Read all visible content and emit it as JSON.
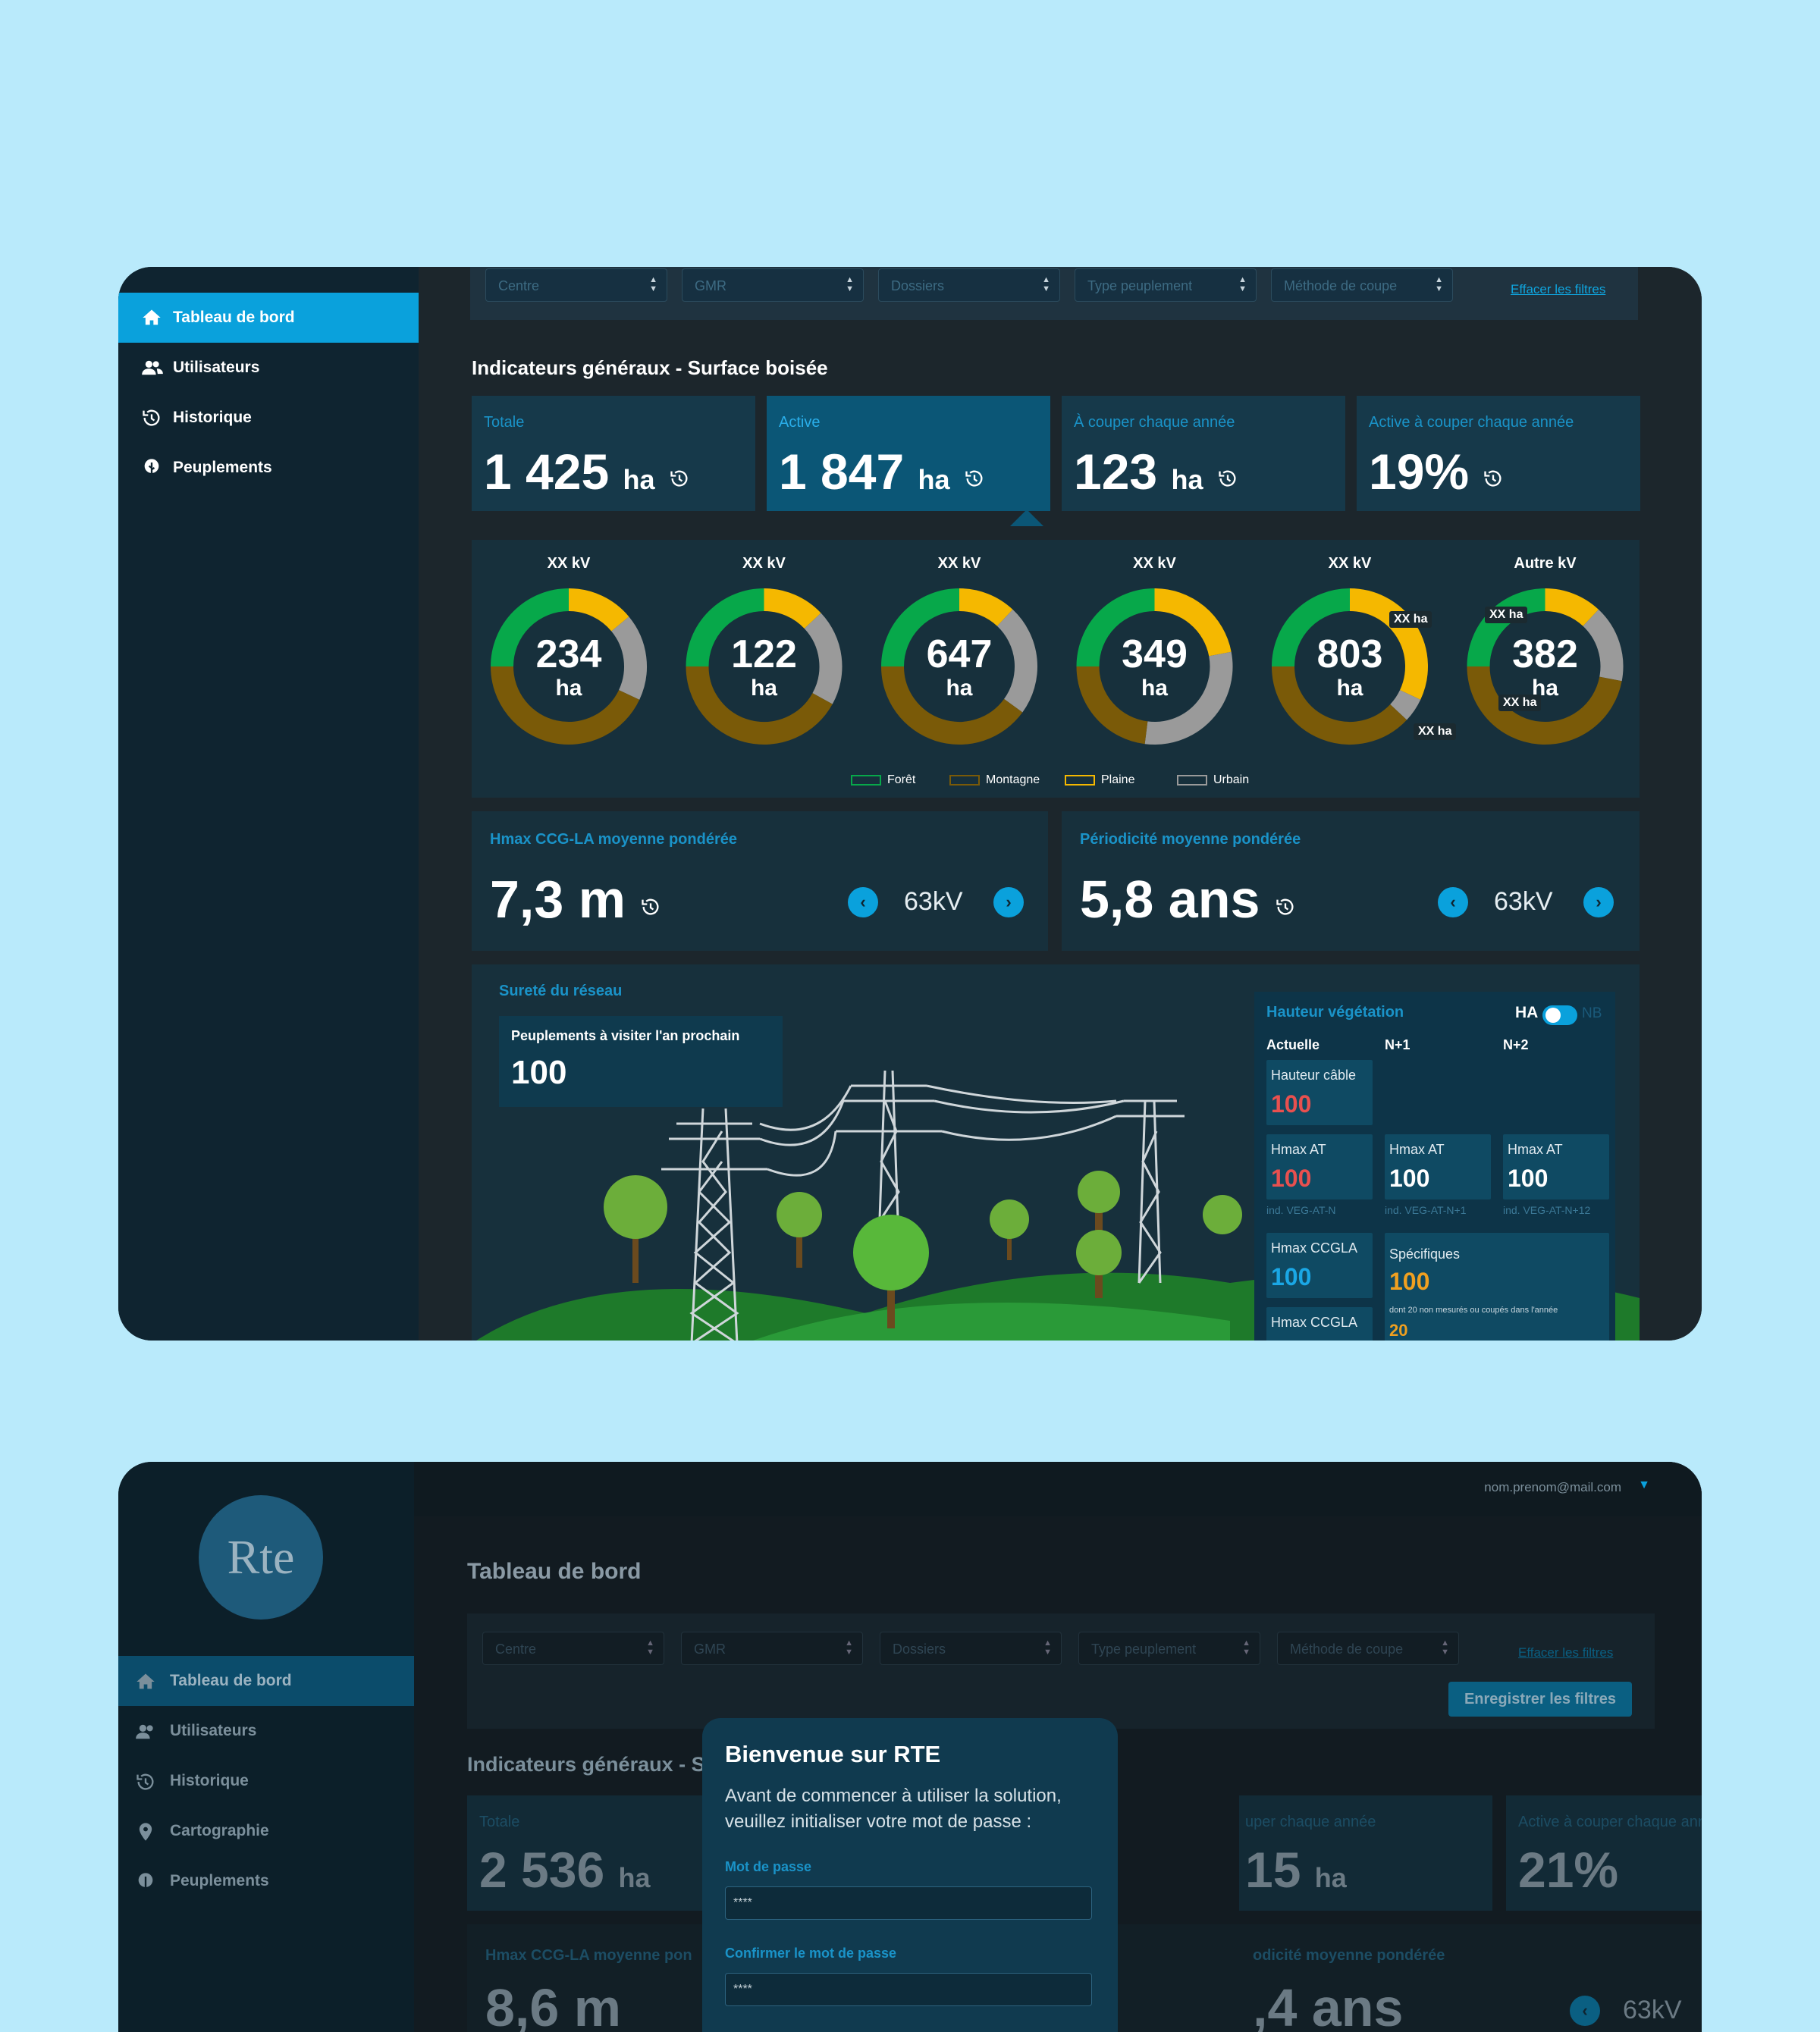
{
  "screen1": {
    "sidebar": {
      "items": [
        {
          "label": "Tableau de bord",
          "icon": "home-icon",
          "active": true
        },
        {
          "label": "Utilisateurs",
          "icon": "users-icon"
        },
        {
          "label": "Historique",
          "icon": "history-icon"
        },
        {
          "label": "Peuplements",
          "icon": "tree-icon"
        }
      ]
    },
    "filters": {
      "selects": [
        "Centre",
        "GMR",
        "Dossiers",
        "Type peuplement",
        "Méthode de coupe"
      ],
      "clear_label": "Effacer les filtres"
    },
    "section_title": "Indicateurs généraux - Surface boisée",
    "kpis": [
      {
        "label": "Totale",
        "value": "1 425",
        "unit": "ha"
      },
      {
        "label": "Active",
        "value": "1 847",
        "unit": "ha"
      },
      {
        "label": "À couper chaque année",
        "value": "123",
        "unit": "ha"
      },
      {
        "label": "Active à couper chaque année",
        "value": "19%",
        "unit": ""
      }
    ],
    "donuts": [
      {
        "label": "XX kV",
        "value": "234",
        "unit": "ha"
      },
      {
        "label": "XX kV",
        "value": "122",
        "unit": "ha"
      },
      {
        "label": "XX kV",
        "value": "647",
        "unit": "ha"
      },
      {
        "label": "XX kV",
        "value": "349",
        "unit": "ha"
      },
      {
        "label": "XX kV",
        "value": "803",
        "unit": "ha"
      },
      {
        "label": "Autre kV",
        "value": "382",
        "unit": "ha"
      }
    ],
    "donut_badges": [
      "XX ha",
      "XX ha",
      "XX ha",
      "XX ha"
    ],
    "legend": [
      {
        "label": "Forêt",
        "color": "#07a84a"
      },
      {
        "label": "Montagne",
        "color": "#7a5a08"
      },
      {
        "label": "Plaine",
        "color": "#f5b800"
      },
      {
        "label": "Urbain",
        "color": "#9a9a9a"
      }
    ],
    "metrics": [
      {
        "label": "Hmax CCG-LA moyenne pondérée",
        "value": "7,3 m",
        "kv": "63kV"
      },
      {
        "label": "Périodicité moyenne pondérée",
        "value": "5,8 ans",
        "kv": "63kV"
      }
    ],
    "surete": {
      "title": "Sureté du réseau",
      "visit_label": "Peuplements à visiter l'an prochain",
      "visit_value": "100"
    },
    "vegetation": {
      "title": "Hauteur végétation",
      "toggle_on": "HA",
      "toggle_off": "NB",
      "cols": [
        "Actuelle",
        "N+1",
        "N+2"
      ],
      "cable_label": "Hauteur câble",
      "cable_value": "100",
      "hmax_at": [
        {
          "label": "Hmax AT",
          "value": "100",
          "ind": "ind. VEG-AT-N"
        },
        {
          "label": "Hmax AT",
          "value": "100",
          "ind": "ind. VEG-AT-N+1"
        },
        {
          "label": "Hmax AT",
          "value": "100",
          "ind": "ind. VEG-AT-N+12"
        }
      ],
      "hmax_ccgla_label": "Hmax CCGLA",
      "hmax_ccgla_value": "100",
      "hmax_ccgla2_label": "Hmax CCGLA",
      "specifiques_label": "Spécifiques",
      "specifiques_value": "100",
      "specifiques_note": "dont 20 non mesurés ou coupés dans l'année",
      "specifiques_sub": "20"
    }
  },
  "screen2": {
    "logo_text": "Rte",
    "user_email": "nom.prenom@mail.com",
    "page_title": "Tableau de bord",
    "sidebar": {
      "items": [
        {
          "label": "Tableau de bord",
          "icon": "home-icon",
          "active": true
        },
        {
          "label": "Utilisateurs",
          "icon": "users-icon"
        },
        {
          "label": "Historique",
          "icon": "history-icon"
        },
        {
          "label": "Cartographie",
          "icon": "map-pin-icon"
        },
        {
          "label": "Peuplements",
          "icon": "tree-icon"
        }
      ]
    },
    "filters": {
      "selects": [
        "Centre",
        "GMR",
        "Dossiers",
        "Type peuplement",
        "Méthode de coupe"
      ],
      "clear_label": "Effacer les filtres",
      "save_label": "Enregistrer les filtres"
    },
    "section_title": "Indicateurs généraux - S",
    "kpi_total_label": "Totale",
    "kpi_total_value": "2 536",
    "kpi_unit": "ha",
    "kpi_cut_label": "uper chaque année",
    "kpi_cut_value": "15",
    "kpi_active_label": "Active à couper chaque année",
    "kpi_active_value": "21%",
    "metric1_label": "Hmax CCG-LA moyenne pon",
    "metric1_value": "8,6 m",
    "metric2_label": "odicité moyenne pondérée",
    "metric2_value": ",4 ans",
    "metric2_kv": "63kV",
    "modal": {
      "title": "Bienvenue sur RTE",
      "text": "Avant de commencer à utiliser la solution, veuillez initialiser votre mot de passe :",
      "password_label": "Mot de passe",
      "password_value": "****",
      "confirm_label": "Confirmer le mot de passe",
      "confirm_value": "****"
    }
  },
  "colors": {
    "accent": "#0aa1dc",
    "foret": "#07a84a",
    "montagne": "#7a5a08",
    "plaine": "#f5b800",
    "urbain": "#9a9a9a",
    "red_value": "#e8504f",
    "orange_value": "#f0a020"
  }
}
